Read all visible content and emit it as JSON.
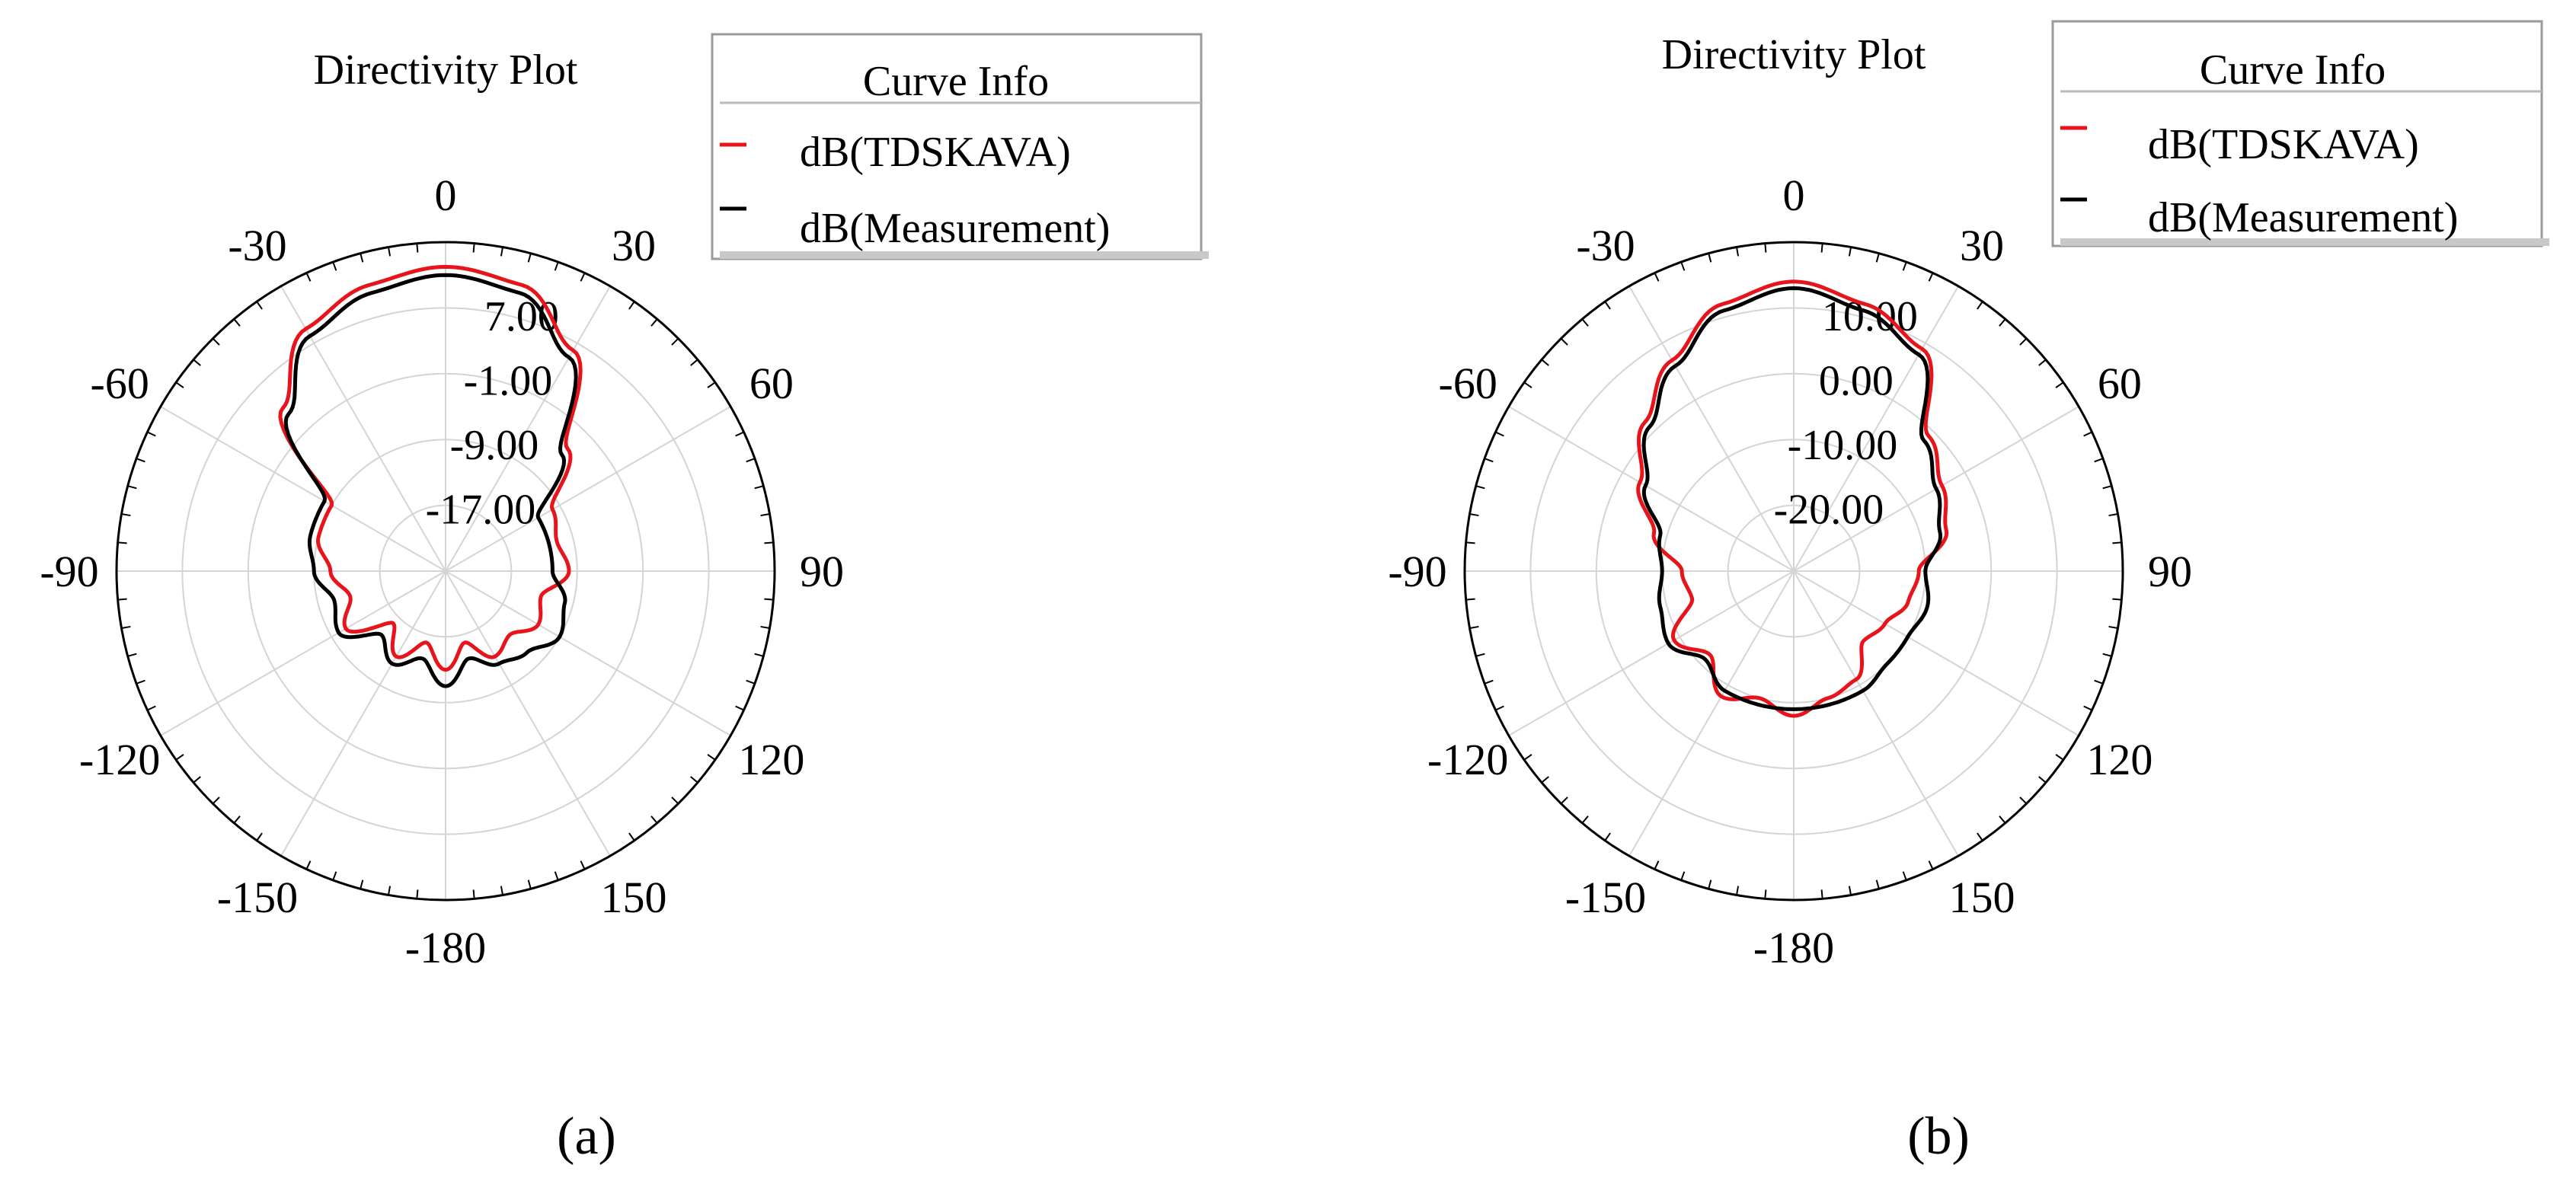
{
  "panels": [
    {
      "panel_label": "(a)",
      "legend": {
        "title": "Curve Info",
        "entries": [
          {
            "label": "dB(TDSKAVA)",
            "color": "#e8141b"
          },
          {
            "label": "dB(Measurement)",
            "color": "#000000"
          }
        ]
      }
    },
    {
      "panel_label": "(b)",
      "legend": {
        "title": "Curve Info",
        "entries": [
          {
            "label": "dB(TDSKAVA)",
            "color": "#e8141b"
          },
          {
            "label": "dB(Measurement)",
            "color": "#000000"
          }
        ]
      }
    }
  ],
  "chart_data": [
    {
      "type": "polar-line",
      "title": "Directivity Plot",
      "angle_ticks": [
        "0",
        "30",
        "60",
        "90",
        "120",
        "150",
        "-180",
        "-150",
        "-120",
        "-90",
        "-60",
        "-30"
      ],
      "angle_tick_values": [
        0,
        30,
        60,
        90,
        120,
        150,
        180,
        -150,
        -120,
        -90,
        -60,
        -30
      ],
      "radial_ticks": [
        "7.00",
        "-1.00",
        "-9.00",
        "-17.00"
      ],
      "radial_tick_values": [
        7,
        -1,
        -9,
        -17
      ],
      "radial_range": [
        -25,
        15
      ],
      "grid": true,
      "legend_position": "top-right",
      "theta_deg": [
        -180,
        -165,
        -150,
        -135,
        -120,
        -105,
        -90,
        -75,
        -60,
        -45,
        -30,
        -15,
        0,
        15,
        30,
        45,
        60,
        75,
        90,
        105,
        120,
        135,
        150,
        165,
        180
      ],
      "series": [
        {
          "name": "dB(TDSKAVA)",
          "color": "#e8141b",
          "values": [
            -13,
            -16,
            -13,
            -16,
            -11,
            -13,
            -11,
            -9,
            -9,
            3,
            9,
            11,
            12,
            11,
            6,
            -4,
            -10,
            -11,
            -10,
            -13,
            -12,
            -14,
            -13,
            -16,
            -13
          ]
        },
        {
          "name": "dB(Measurement)",
          "color": "#000000",
          "values": [
            -11,
            -14,
            -12,
            -14,
            -10,
            -11,
            -9,
            -8,
            -8,
            2,
            8,
            10,
            11,
            10,
            5,
            -5,
            -12,
            -12,
            -12,
            -10,
            -9,
            -11,
            -12,
            -14,
            -11
          ]
        }
      ]
    },
    {
      "type": "polar-line",
      "title": "Directivity Plot",
      "angle_ticks": [
        "0",
        "30",
        "60",
        "90",
        "120",
        "150",
        "-180",
        "-150",
        "-120",
        "-90",
        "-60",
        "-30"
      ],
      "angle_tick_values": [
        0,
        30,
        60,
        90,
        120,
        150,
        180,
        -150,
        -120,
        -90,
        -60,
        -30
      ],
      "radial_ticks": [
        "10.00",
        "0.00",
        "-10.00",
        "-20.00"
      ],
      "radial_tick_values": [
        10,
        0,
        -10,
        -20
      ],
      "radial_range": [
        -30,
        20
      ],
      "grid": true,
      "legend_position": "top-right",
      "theta_deg": [
        -180,
        -165,
        -150,
        -135,
        -120,
        -105,
        -90,
        -75,
        -60,
        -45,
        -30,
        -15,
        0,
        15,
        30,
        45,
        60,
        75,
        90,
        105,
        120,
        135,
        150,
        165,
        180
      ],
      "series": [
        {
          "name": "dB(TDSKAVA)",
          "color": "#e8141b",
          "values": [
            -8,
            -10,
            -8,
            -12,
            -9,
            -14,
            -13,
            -8,
            -3,
            2,
            7,
            12,
            14,
            12,
            9,
            -1,
            -4,
            -6,
            -11,
            -12,
            -14,
            -15,
            -11,
            -10,
            -8
          ]
        },
        {
          "name": "dB(Measurement)",
          "color": "#000000",
          "values": [
            -9,
            -9,
            -9,
            -11,
            -8,
            -9,
            -10,
            -9,
            -4,
            1,
            6,
            11,
            13,
            11,
            8,
            -2,
            -5,
            -7,
            -10,
            -9,
            -10,
            -10,
            -9,
            -9,
            -9
          ]
        }
      ]
    }
  ]
}
